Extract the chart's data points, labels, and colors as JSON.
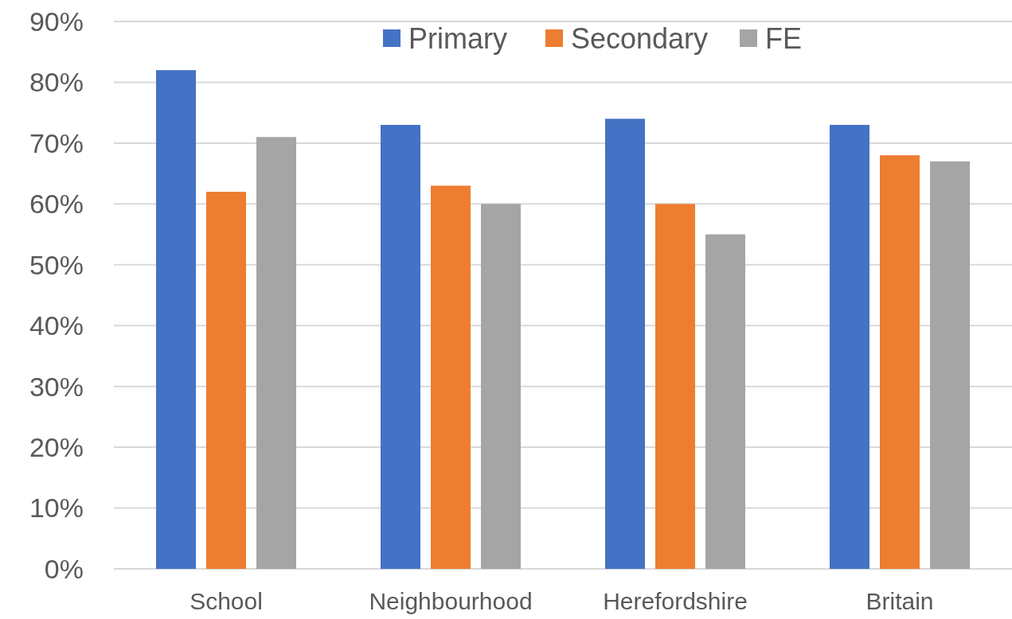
{
  "chart_data": {
    "type": "bar",
    "categories": [
      "School",
      "Neighbourhood",
      "Herefordshire",
      "Britain"
    ],
    "series": [
      {
        "name": "Primary",
        "color": "#4472c4",
        "values": [
          82,
          73,
          74,
          73
        ]
      },
      {
        "name": "Secondary",
        "color": "#ed7d31",
        "values": [
          62,
          63,
          60,
          68
        ]
      },
      {
        "name": "FE",
        "color": "#a5a5a5",
        "values": [
          71,
          60,
          55,
          67
        ]
      }
    ],
    "ylim": [
      0,
      90
    ],
    "yticks": [
      {
        "value": 0,
        "label": "0%"
      },
      {
        "value": 10,
        "label": "10%"
      },
      {
        "value": 20,
        "label": "20%"
      },
      {
        "value": 30,
        "label": "30%"
      },
      {
        "value": 40,
        "label": "40%"
      },
      {
        "value": 50,
        "label": "50%"
      },
      {
        "value": 60,
        "label": "60%"
      },
      {
        "value": 70,
        "label": "70%"
      },
      {
        "value": 80,
        "label": "80%"
      },
      {
        "value": 90,
        "label": "90%"
      }
    ],
    "grid": "y",
    "legend": "top"
  }
}
